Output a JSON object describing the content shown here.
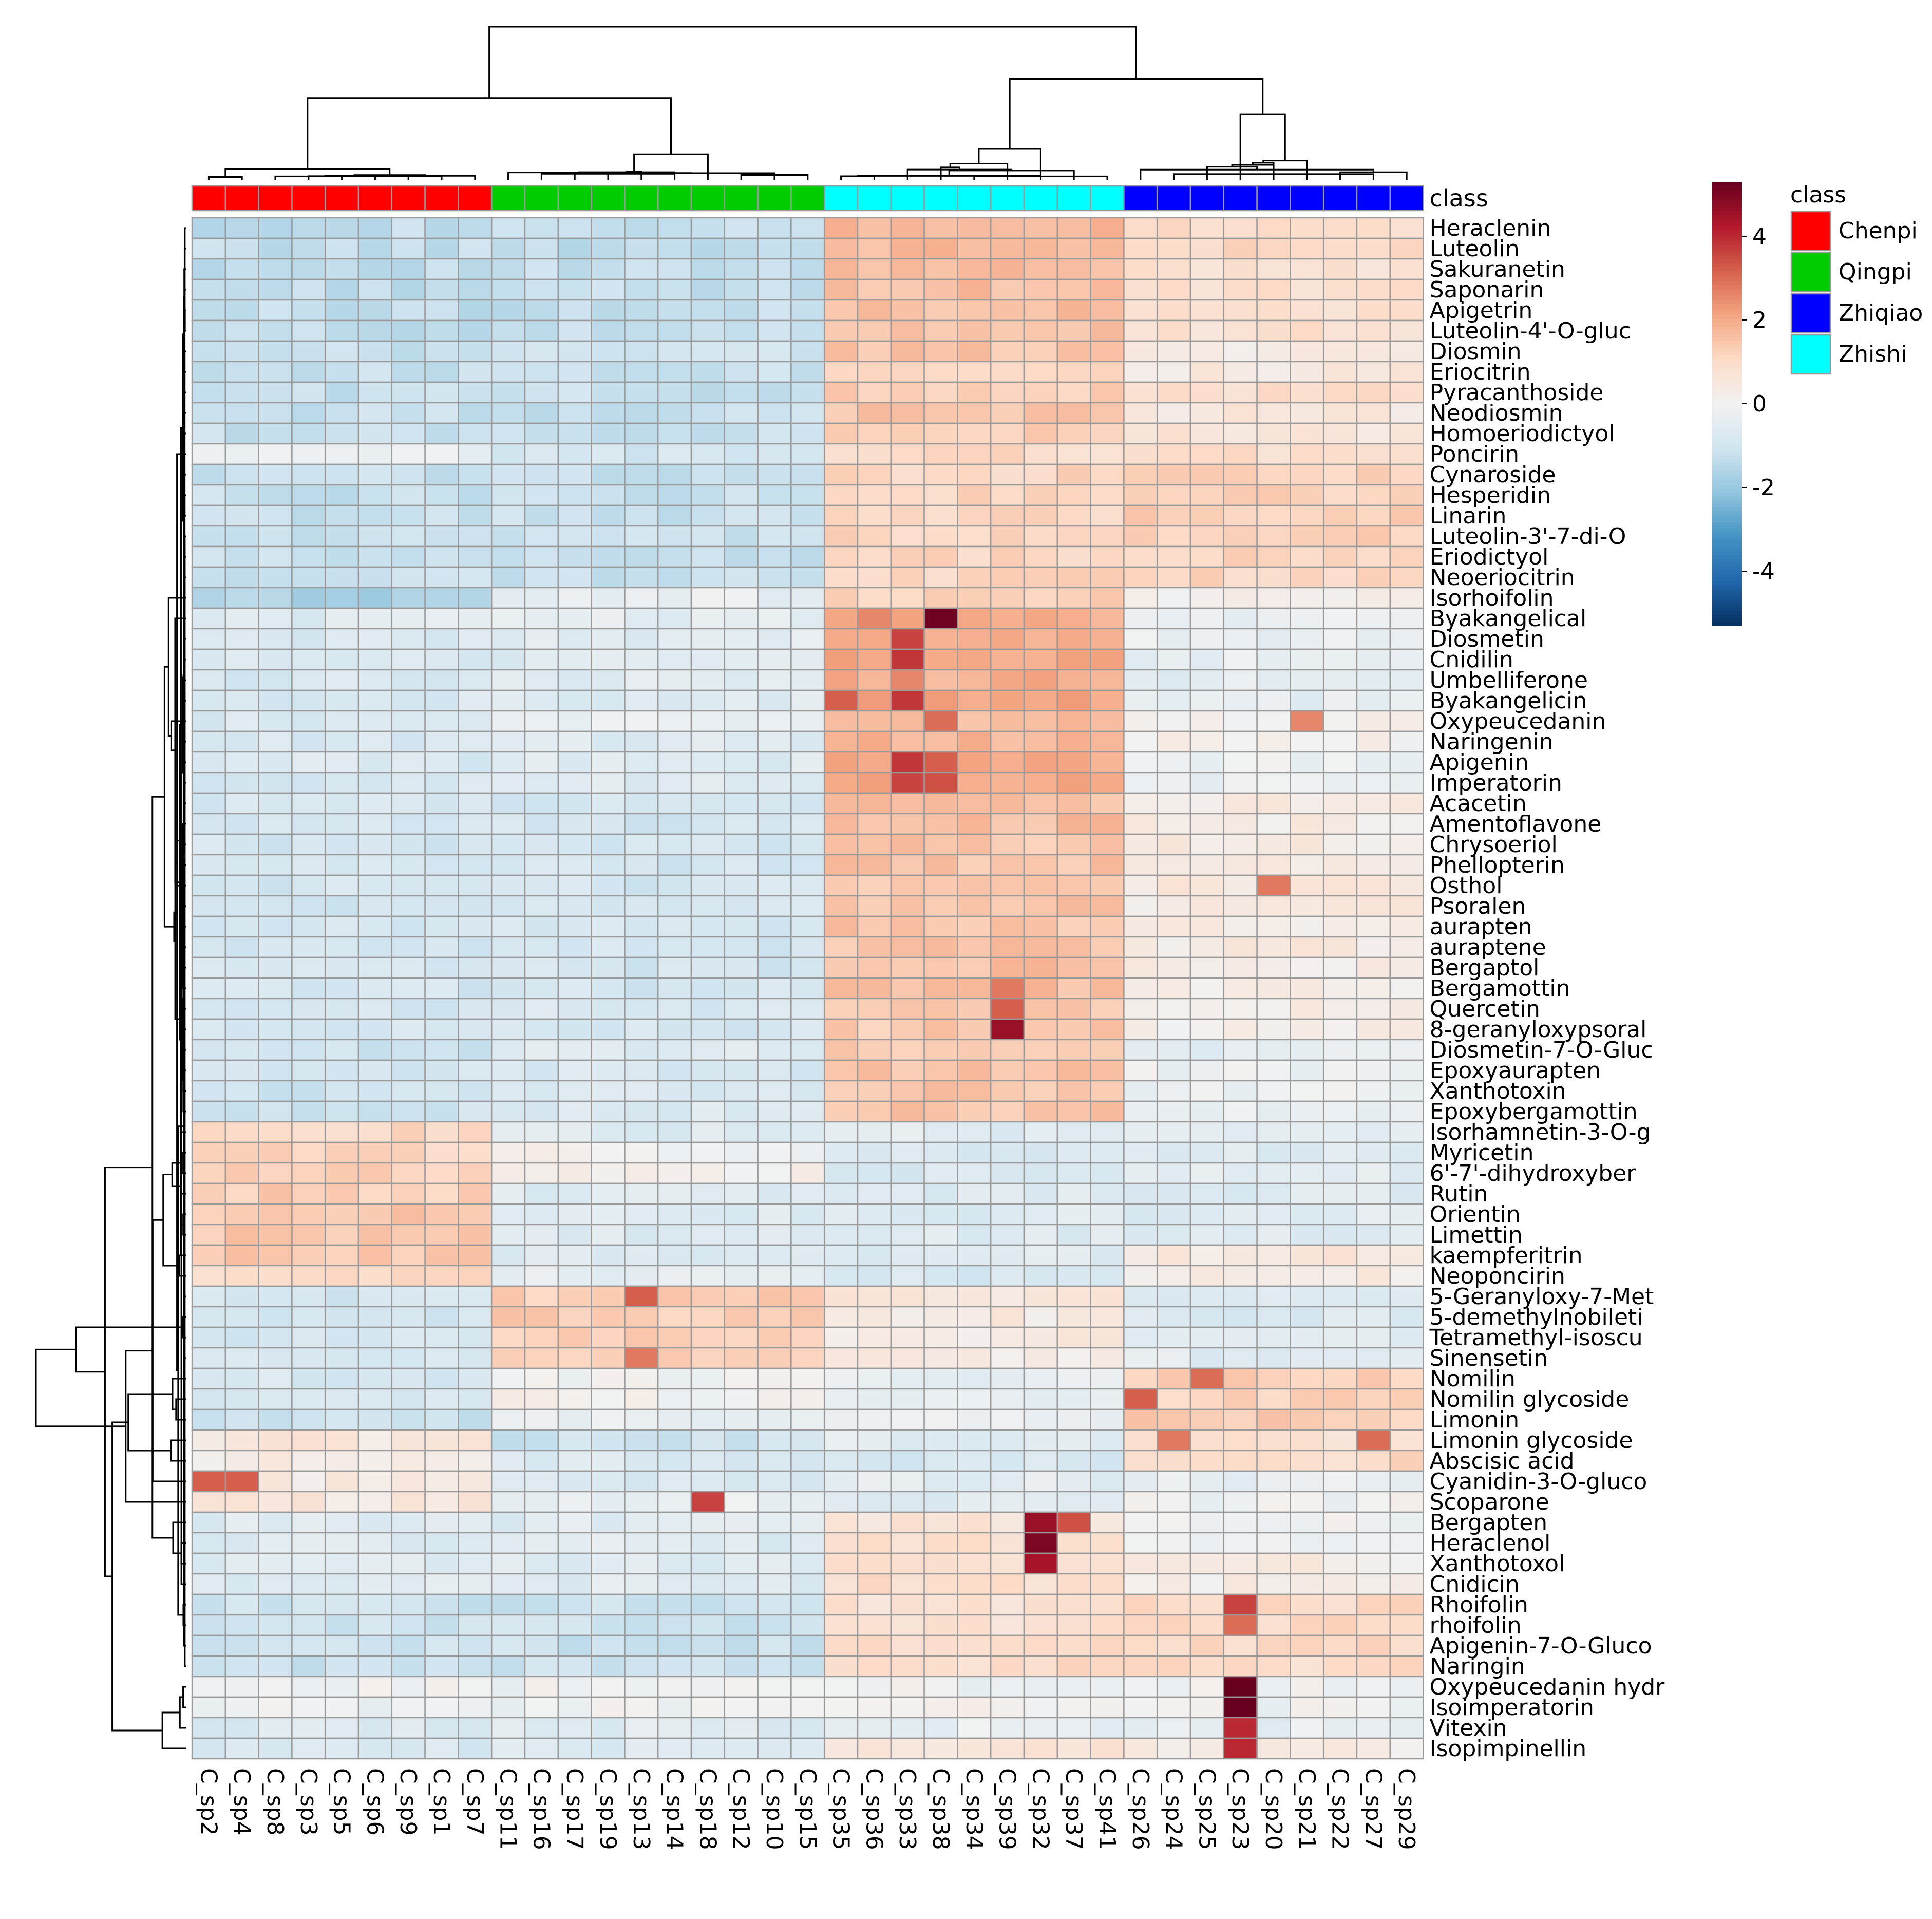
{
  "chart_data": {
    "type": "heatmap",
    "title": "",
    "color_scale": {
      "min": -5.3,
      "max": 5.3,
      "ticks": [
        -4,
        -2,
        0,
        2,
        4
      ],
      "tick_labels": [
        "-4",
        "-2",
        "0",
        "2",
        "4"
      ],
      "stops": [
        "#053061",
        "#2166AC",
        "#4393C3",
        "#92C5DE",
        "#D1E5F0",
        "#F2F2F2",
        "#FDDBC7",
        "#F4A582",
        "#D6604D",
        "#B2182B",
        "#67001F"
      ]
    },
    "class_annotation": {
      "title": "class",
      "legend_title": "class",
      "legend": [
        {
          "name": "Chenpi",
          "color": "#FF0000"
        },
        {
          "name": "Qingpi",
          "color": "#00CC00"
        },
        {
          "name": "Zhiqiao",
          "color": "#0000FF"
        },
        {
          "name": "Zhishi",
          "color": "#00FFFF"
        }
      ]
    },
    "columns": [
      {
        "label": "C_sp2",
        "class": "Chenpi"
      },
      {
        "label": "C_sp4",
        "class": "Chenpi"
      },
      {
        "label": "C_sp8",
        "class": "Chenpi"
      },
      {
        "label": "C_sp3",
        "class": "Chenpi"
      },
      {
        "label": "C_sp5",
        "class": "Chenpi"
      },
      {
        "label": "C_sp6",
        "class": "Chenpi"
      },
      {
        "label": "C_sp9",
        "class": "Chenpi"
      },
      {
        "label": "C_sp1",
        "class": "Chenpi"
      },
      {
        "label": "C_sp7",
        "class": "Chenpi"
      },
      {
        "label": "C_sp11",
        "class": "Qingpi"
      },
      {
        "label": "C_sp16",
        "class": "Qingpi"
      },
      {
        "label": "C_sp17",
        "class": "Qingpi"
      },
      {
        "label": "C_sp19",
        "class": "Qingpi"
      },
      {
        "label": "C_sp13",
        "class": "Qingpi"
      },
      {
        "label": "C_sp14",
        "class": "Qingpi"
      },
      {
        "label": "C_sp18",
        "class": "Qingpi"
      },
      {
        "label": "C_sp12",
        "class": "Qingpi"
      },
      {
        "label": "C_sp10",
        "class": "Qingpi"
      },
      {
        "label": "C_sp15",
        "class": "Qingpi"
      },
      {
        "label": "C_sp35",
        "class": "Zhishi"
      },
      {
        "label": "C_sp36",
        "class": "Zhishi"
      },
      {
        "label": "C_sp33",
        "class": "Zhishi"
      },
      {
        "label": "C_sp38",
        "class": "Zhishi"
      },
      {
        "label": "C_sp34",
        "class": "Zhishi"
      },
      {
        "label": "C_sp39",
        "class": "Zhishi"
      },
      {
        "label": "C_sp32",
        "class": "Zhishi"
      },
      {
        "label": "C_sp37",
        "class": "Zhishi"
      },
      {
        "label": "C_sp41",
        "class": "Zhishi"
      },
      {
        "label": "C_sp26",
        "class": "Zhiqiao"
      },
      {
        "label": "C_sp24",
        "class": "Zhiqiao"
      },
      {
        "label": "C_sp25",
        "class": "Zhiqiao"
      },
      {
        "label": "C_sp23",
        "class": "Zhiqiao"
      },
      {
        "label": "C_sp20",
        "class": "Zhiqiao"
      },
      {
        "label": "C_sp21",
        "class": "Zhiqiao"
      },
      {
        "label": "C_sp22",
        "class": "Zhiqiao"
      },
      {
        "label": "C_sp27",
        "class": "Zhiqiao"
      },
      {
        "label": "C_sp29",
        "class": "Zhiqiao"
      }
    ],
    "rows": [
      "Heraclenin",
      "Luteolin",
      "Sakuranetin",
      "Saponarin",
      "Apigetrin",
      "Luteolin-4'-O-gluc",
      "Diosmin",
      "Eriocitrin",
      "Pyracanthoside",
      "Neodiosmin",
      "Homoeriodictyol",
      "Poncirin",
      "Cynaroside",
      "Hesperidin",
      "Linarin",
      "Luteolin-3'-7-di-O",
      "Eriodictyol",
      "Neoeriocitrin",
      "Isorhoifolin",
      "Byakangelical",
      "Diosmetin",
      "Cnidilin",
      "Umbelliferone",
      "Byakangelicin",
      "Oxypeucedanin",
      "Naringenin",
      "Apigenin",
      "Imperatorin",
      "Acacetin",
      "Amentoflavone",
      "Chrysoeriol",
      "Phellopterin",
      "Osthol",
      "Psoralen",
      "aurapten",
      "auraptene",
      "Bergaptol",
      "Bergamottin",
      "Quercetin",
      "8-geranyloxypsoral",
      "Diosmetin-7-O-Gluc",
      "Epoxyaurapten",
      "Xanthotoxin",
      "Epoxybergamottin",
      "Isorhamnetin-3-O-g",
      "Myricetin",
      "6'-7'-dihydroxyber",
      "Rutin",
      "Orientin",
      "Limettin",
      "kaempferitrin",
      "Neoponcirin",
      "5-Geranyloxy-7-Met",
      "5-demethylnobileti",
      "Tetramethyl-isoscu",
      "Sinensetin",
      "Nomilin",
      "Nomilin glycoside",
      "Limonin",
      "Limonin glycoside",
      "Abscisic acid",
      "Cyanidin-3-O-gluco",
      "Scoparone",
      "Bergapten",
      "Heraclenol",
      "Xanthotoxol",
      "Cnidicin",
      "Rhoifolin",
      "rhoifolin",
      "Apigenin-7-O-Gluco",
      "Naringin",
      "Oxypeucedanin hydr",
      "Isoimperatorin",
      "Vitexin",
      "Isopimpinellin"
    ],
    "group_profiles": {
      "note": "Approximate standardized values (z-score) per row, given as [Chenpi, Qingpi, Zhishi, Zhiqiao] group levels; per-column deviations and hotspots listed separately.",
      "values": [
        [
          -1.3,
          -1.3,
          1.7,
          0.9
        ],
        [
          -1.3,
          -1.3,
          1.7,
          1.0
        ],
        [
          -1.3,
          -1.3,
          1.6,
          0.8
        ],
        [
          -1.3,
          -1.3,
          1.6,
          0.8
        ],
        [
          -1.3,
          -1.3,
          1.6,
          0.8
        ],
        [
          -1.3,
          -1.3,
          1.6,
          0.8
        ],
        [
          -1.3,
          -1.0,
          1.5,
          0.4
        ],
        [
          -1.2,
          -1.1,
          1.2,
          0.4
        ],
        [
          -1.2,
          -1.2,
          1.3,
          0.9
        ],
        [
          -1.2,
          -1.2,
          1.5,
          0.5
        ],
        [
          -1.2,
          -1.2,
          1.4,
          0.6
        ],
        [
          -0.3,
          -0.9,
          1.0,
          0.9
        ],
        [
          -1.2,
          -1.2,
          1.1,
          1.2
        ],
        [
          -1.2,
          -1.2,
          1.1,
          1.2
        ],
        [
          -1.2,
          -1.2,
          1.1,
          1.3
        ],
        [
          -1.2,
          -1.2,
          1.1,
          1.3
        ],
        [
          -1.2,
          -1.2,
          1.1,
          1.1
        ],
        [
          -1.2,
          -1.2,
          1.1,
          1.1
        ],
        [
          -1.7,
          -0.3,
          1.2,
          0.1
        ],
        [
          -0.6,
          -0.4,
          2.0,
          -0.3
        ],
        [
          -0.8,
          -0.5,
          2.0,
          -0.3
        ],
        [
          -0.8,
          -0.6,
          2.0,
          -0.3
        ],
        [
          -0.8,
          -0.5,
          1.9,
          -0.4
        ],
        [
          -0.8,
          -0.6,
          2.0,
          -0.4
        ],
        [
          -0.8,
          -0.2,
          1.6,
          0.1
        ],
        [
          -0.8,
          -0.6,
          1.8,
          0.1
        ],
        [
          -0.8,
          -0.6,
          2.0,
          -0.2
        ],
        [
          -0.8,
          -0.6,
          2.0,
          -0.2
        ],
        [
          -0.9,
          -0.9,
          1.6,
          0.3
        ],
        [
          -0.9,
          -0.9,
          1.6,
          0.3
        ],
        [
          -0.9,
          -0.9,
          1.5,
          0.4
        ],
        [
          -0.9,
          -0.9,
          1.5,
          0.4
        ],
        [
          -0.9,
          -0.9,
          1.5,
          0.5
        ],
        [
          -0.9,
          -0.9,
          1.5,
          0.4
        ],
        [
          -0.9,
          -0.9,
          1.5,
          0.4
        ],
        [
          -0.9,
          -0.9,
          1.5,
          0.4
        ],
        [
          -0.9,
          -0.9,
          1.6,
          0.3
        ],
        [
          -0.9,
          -0.9,
          1.6,
          0.3
        ],
        [
          -0.9,
          -0.8,
          1.4,
          0.3
        ],
        [
          -0.9,
          -0.9,
          1.4,
          0.2
        ],
        [
          -1.0,
          -0.5,
          1.3,
          -0.4
        ],
        [
          -1.0,
          -0.8,
          1.5,
          -0.2
        ],
        [
          -1.0,
          -0.8,
          1.5,
          -0.2
        ],
        [
          -1.0,
          -0.8,
          1.5,
          -0.2
        ],
        [
          1.0,
          -0.6,
          -0.5,
          -0.6
        ],
        [
          1.1,
          0.0,
          -0.8,
          -0.6
        ],
        [
          1.3,
          0.1,
          -0.8,
          -0.5
        ],
        [
          1.3,
          -0.6,
          -0.6,
          -0.6
        ],
        [
          1.4,
          -0.6,
          -0.6,
          -0.6
        ],
        [
          1.4,
          -0.6,
          -0.6,
          -0.5
        ],
        [
          1.4,
          -0.6,
          -0.6,
          0.5
        ],
        [
          1.0,
          -0.4,
          -0.8,
          0.3
        ],
        [
          -0.9,
          1.3,
          0.5,
          -0.7
        ],
        [
          -0.9,
          1.3,
          0.4,
          -0.7
        ],
        [
          -0.9,
          1.3,
          0.4,
          -0.6
        ],
        [
          -0.9,
          1.4,
          0.3,
          -0.5
        ],
        [
          -0.8,
          -0.1,
          -0.4,
          1.3
        ],
        [
          -0.8,
          0.1,
          -0.3,
          1.2
        ],
        [
          -1.1,
          -0.2,
          -0.2,
          1.3
        ],
        [
          0.5,
          -1.1,
          -0.5,
          0.8
        ],
        [
          0.3,
          -0.7,
          -0.8,
          1.0
        ],
        [
          0.4,
          -0.8,
          -0.5,
          -0.3
        ],
        [
          0.5,
          -0.3,
          -0.6,
          -0.1
        ],
        [
          -0.6,
          -0.6,
          0.6,
          -0.1
        ],
        [
          -0.6,
          -0.6,
          0.8,
          -0.1
        ],
        [
          -0.6,
          -0.6,
          0.9,
          0.3
        ],
        [
          -0.6,
          -0.6,
          0.9,
          0.3
        ],
        [
          -1.1,
          -1.1,
          0.8,
          1.0
        ],
        [
          -1.1,
          -1.1,
          0.8,
          1.0
        ],
        [
          -1.1,
          -1.1,
          1.0,
          1.0
        ],
        [
          -1.1,
          -1.1,
          1.0,
          1.0
        ],
        [
          -0.1,
          -0.1,
          -0.1,
          -0.1
        ],
        [
          -0.1,
          -0.1,
          0.0,
          -0.1
        ],
        [
          -0.7,
          -0.6,
          -0.3,
          -0.3
        ],
        [
          -0.8,
          -0.7,
          0.7,
          0.3
        ]
      ],
      "hotspots": [
        {
          "row": "Byakangelical",
          "col": "C_sp38",
          "value": 5.2
        },
        {
          "row": "Byakangelical",
          "col": "C_sp36",
          "value": 2.6
        },
        {
          "row": "Diosmetin",
          "col": "C_sp33",
          "value": 3.6
        },
        {
          "row": "Cnidilin",
          "col": "C_sp33",
          "value": 3.8
        },
        {
          "row": "Byakangelicin",
          "col": "C_sp33",
          "value": 3.8
        },
        {
          "row": "Byakangelicin",
          "col": "C_sp35",
          "value": 3.2
        },
        {
          "row": "Umbelliferone",
          "col": "C_sp33",
          "value": 2.6
        },
        {
          "row": "Apigenin",
          "col": "C_sp33",
          "value": 3.8
        },
        {
          "row": "Apigenin",
          "col": "C_sp38",
          "value": 3.2
        },
        {
          "row": "Imperatorin",
          "col": "C_sp33",
          "value": 3.6
        },
        {
          "row": "Imperatorin",
          "col": "C_sp38",
          "value": 3.4
        },
        {
          "row": "Oxypeucedanin",
          "col": "C_sp38",
          "value": 3.0
        },
        {
          "row": "Oxypeucedanin",
          "col": "C_sp21",
          "value": 2.6
        },
        {
          "row": "Quercetin",
          "col": "C_sp39",
          "value": 3.2
        },
        {
          "row": "8-geranyloxypsoral",
          "col": "C_sp39",
          "value": 4.6
        },
        {
          "row": "Bergamottin",
          "col": "C_sp39",
          "value": 2.8
        },
        {
          "row": "Osthol",
          "col": "C_sp20",
          "value": 2.8
        },
        {
          "row": "5-Geranyloxy-7-Met",
          "col": "C_sp13",
          "value": 3.2
        },
        {
          "row": "Sinensetin",
          "col": "C_sp13",
          "value": 2.8
        },
        {
          "row": "Nomilin",
          "col": "C_sp25",
          "value": 3.0
        },
        {
          "row": "Nomilin glycoside",
          "col": "C_sp26",
          "value": 3.2
        },
        {
          "row": "Limonin glycoside",
          "col": "C_sp27",
          "value": 3.0
        },
        {
          "row": "Limonin glycoside",
          "col": "C_sp24",
          "value": 2.8
        },
        {
          "row": "Cyanidin-3-O-gluco",
          "col": "C_sp2",
          "value": 3.2
        },
        {
          "row": "Cyanidin-3-O-gluco",
          "col": "C_sp4",
          "value": 3.2
        },
        {
          "row": "Scoparone",
          "col": "C_sp18",
          "value": 3.6
        },
        {
          "row": "Bergapten",
          "col": "C_sp32",
          "value": 4.6
        },
        {
          "row": "Bergapten",
          "col": "C_sp37",
          "value": 3.4
        },
        {
          "row": "Heraclenol",
          "col": "C_sp32",
          "value": 5.0
        },
        {
          "row": "Xanthotoxol",
          "col": "C_sp32",
          "value": 4.4
        },
        {
          "row": "Rhoifolin",
          "col": "C_sp23",
          "value": 3.6
        },
        {
          "row": "rhoifolin",
          "col": "C_sp23",
          "value": 3.0
        },
        {
          "row": "Oxypeucedanin hydr",
          "col": "C_sp23",
          "value": 5.6
        },
        {
          "row": "Isoimperatorin",
          "col": "C_sp23",
          "value": 5.6
        },
        {
          "row": "Vitexin",
          "col": "C_sp23",
          "value": 4.0
        },
        {
          "row": "Isopimpinellin",
          "col": "C_sp23",
          "value": 4.0
        }
      ]
    }
  }
}
